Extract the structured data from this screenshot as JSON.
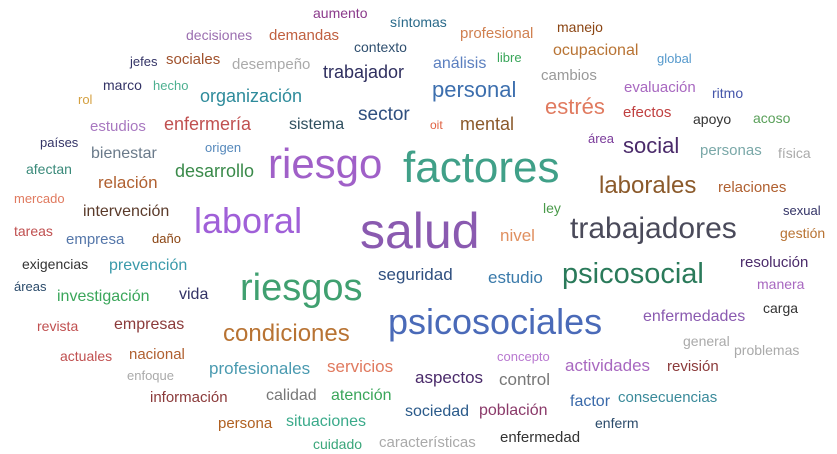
{
  "words": [
    "aumento",
    "síntomas",
    "manejo",
    "decisiones",
    "demandas",
    "profesional",
    "contexto",
    "ocupacional",
    "jefes",
    "sociales",
    "desempeño",
    "análisis",
    "libre",
    "global",
    "trabajador",
    "cambios",
    "rol",
    "marco",
    "hecho",
    "organización",
    "personal",
    "evaluación",
    "ritmo",
    "estrés",
    "efectos",
    "apoyo",
    "acoso",
    "estudios",
    "enfermería",
    "sistema",
    "sector",
    "oit",
    "mental",
    "países",
    "área",
    "social",
    "personas",
    "física",
    "origen",
    "bienestar",
    "riesgo",
    "factores",
    "afectan",
    "desarrollo",
    "relación",
    "laborales",
    "relaciones",
    "mercado",
    "intervención",
    "laboral",
    "salud",
    "ley",
    "sexual",
    "trabajadores",
    "tareas",
    "empresa",
    "daño",
    "nivel",
    "gestión",
    "exigencias",
    "prevención",
    "resolución",
    "áreas",
    "riesgos",
    "seguridad",
    "estudio",
    "psicosocial",
    "manera",
    "investigación",
    "vida",
    "revista",
    "empresas",
    "condiciones",
    "psicosociales",
    "enfermedades",
    "carga",
    "general",
    "concepto",
    "actuales",
    "nacional",
    "problemas",
    "profesionales",
    "servicios",
    "actividades",
    "revisión",
    "enfoque",
    "aspectos",
    "control",
    "calidad",
    "atención",
    "información",
    "factor",
    "consecuencias",
    "persona",
    "situaciones",
    "sociedad",
    "población",
    "enferm",
    "cuidado",
    "características",
    "enfermedad"
  ]
}
